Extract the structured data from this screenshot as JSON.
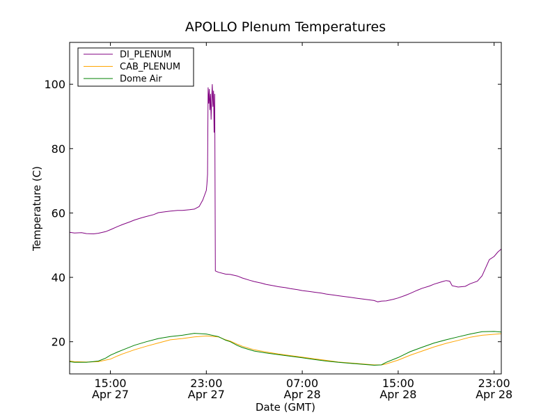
{
  "chart_data": {
    "type": "line",
    "title": "APOLLO Plenum Temperatures",
    "xlabel": "Date (GMT)",
    "ylabel": "Temperature (C)",
    "xlim_hours": [
      11.6,
      47.6
    ],
    "ylim": [
      10,
      113
    ],
    "grid": false,
    "legend_position": "top-left",
    "y_ticks": [
      20,
      40,
      60,
      80,
      100
    ],
    "x_ticks": [
      {
        "hour": 15,
        "time": "15:00",
        "date": "Apr 27"
      },
      {
        "hour": 23,
        "time": "23:00",
        "date": "Apr 27"
      },
      {
        "hour": 31,
        "time": "07:00",
        "date": "Apr 28"
      },
      {
        "hour": 39,
        "time": "15:00",
        "date": "Apr 28"
      },
      {
        "hour": 47,
        "time": "23:00",
        "date": "Apr 28"
      }
    ],
    "series": [
      {
        "name": "DI_PLENUM",
        "color": "#800080",
        "points": [
          [
            11.6,
            54.0
          ],
          [
            12.0,
            53.8
          ],
          [
            12.6,
            53.9
          ],
          [
            13.0,
            53.6
          ],
          [
            13.6,
            53.5
          ],
          [
            14.0,
            53.7
          ],
          [
            14.6,
            54.2
          ],
          [
            15.0,
            54.8
          ],
          [
            15.6,
            55.8
          ],
          [
            16.0,
            56.4
          ],
          [
            16.6,
            57.2
          ],
          [
            17.0,
            57.8
          ],
          [
            17.6,
            58.5
          ],
          [
            18.0,
            58.9
          ],
          [
            18.6,
            59.5
          ],
          [
            19.0,
            60.1
          ],
          [
            19.6,
            60.4
          ],
          [
            20.0,
            60.6
          ],
          [
            20.6,
            60.8
          ],
          [
            21.0,
            60.8
          ],
          [
            21.6,
            61.0
          ],
          [
            22.0,
            61.2
          ],
          [
            22.4,
            62.0
          ],
          [
            22.7,
            64.0
          ],
          [
            23.0,
            67.0
          ],
          [
            23.05,
            69.0
          ],
          [
            23.1,
            72.0
          ],
          [
            23.15,
            99.0
          ],
          [
            23.2,
            94.0
          ],
          [
            23.25,
            98.5
          ],
          [
            23.3,
            92.0
          ],
          [
            23.35,
            97.0
          ],
          [
            23.4,
            89.0
          ],
          [
            23.45,
            96.0
          ],
          [
            23.5,
            100.0
          ],
          [
            23.55,
            93.0
          ],
          [
            23.6,
            98.0
          ],
          [
            23.65,
            85.0
          ],
          [
            23.7,
            97.0
          ],
          [
            23.75,
            42.0
          ],
          [
            24.0,
            41.6
          ],
          [
            24.6,
            41.0
          ],
          [
            25.0,
            40.9
          ],
          [
            25.6,
            40.4
          ],
          [
            26.0,
            39.8
          ],
          [
            26.6,
            39.1
          ],
          [
            27.0,
            38.7
          ],
          [
            27.6,
            38.2
          ],
          [
            28.0,
            37.8
          ],
          [
            28.6,
            37.4
          ],
          [
            29.0,
            37.1
          ],
          [
            29.6,
            36.8
          ],
          [
            30.0,
            36.5
          ],
          [
            30.6,
            36.2
          ],
          [
            31.0,
            35.9
          ],
          [
            31.6,
            35.6
          ],
          [
            32.0,
            35.4
          ],
          [
            32.6,
            35.1
          ],
          [
            33.0,
            34.8
          ],
          [
            33.6,
            34.5
          ],
          [
            34.0,
            34.3
          ],
          [
            34.6,
            34.0
          ],
          [
            35.0,
            33.8
          ],
          [
            35.6,
            33.5
          ],
          [
            36.0,
            33.3
          ],
          [
            36.6,
            33.0
          ],
          [
            37.0,
            32.8
          ],
          [
            37.3,
            32.4
          ],
          [
            37.6,
            32.6
          ],
          [
            38.0,
            32.7
          ],
          [
            38.6,
            33.2
          ],
          [
            39.0,
            33.6
          ],
          [
            39.6,
            34.4
          ],
          [
            40.0,
            35.0
          ],
          [
            40.6,
            36.0
          ],
          [
            41.0,
            36.6
          ],
          [
            41.6,
            37.3
          ],
          [
            42.0,
            37.9
          ],
          [
            42.6,
            38.6
          ],
          [
            43.0,
            39.0
          ],
          [
            43.3,
            38.8
          ],
          [
            43.5,
            37.4
          ],
          [
            44.0,
            37.0
          ],
          [
            44.6,
            37.2
          ],
          [
            45.0,
            38.0
          ],
          [
            45.6,
            38.8
          ],
          [
            46.0,
            40.5
          ],
          [
            46.3,
            43.0
          ],
          [
            46.6,
            45.5
          ],
          [
            47.0,
            46.5
          ],
          [
            47.3,
            47.8
          ],
          [
            47.6,
            48.8
          ]
        ]
      },
      {
        "name": "CAB_PLENUM",
        "color": "#ffa500",
        "points": [
          [
            11.6,
            14.0
          ],
          [
            12.0,
            13.8
          ],
          [
            13.0,
            13.7
          ],
          [
            14.0,
            13.8
          ],
          [
            14.6,
            14.3
          ],
          [
            15.0,
            14.6
          ],
          [
            15.6,
            15.6
          ],
          [
            16.0,
            16.2
          ],
          [
            17.0,
            17.5
          ],
          [
            18.0,
            18.6
          ],
          [
            19.0,
            19.6
          ],
          [
            20.0,
            20.6
          ],
          [
            21.0,
            21.0
          ],
          [
            22.0,
            21.5
          ],
          [
            23.0,
            21.8
          ],
          [
            24.0,
            21.5
          ],
          [
            24.6,
            20.6
          ],
          [
            25.0,
            20.2
          ],
          [
            25.6,
            19.2
          ],
          [
            26.0,
            18.6
          ],
          [
            27.0,
            17.5
          ],
          [
            28.0,
            16.8
          ],
          [
            29.0,
            16.2
          ],
          [
            30.0,
            15.7
          ],
          [
            31.0,
            15.2
          ],
          [
            32.0,
            14.7
          ],
          [
            33.0,
            14.2
          ],
          [
            34.0,
            13.7
          ],
          [
            35.0,
            13.4
          ],
          [
            36.0,
            13.1
          ],
          [
            37.0,
            12.8
          ],
          [
            37.6,
            12.8
          ],
          [
            38.0,
            13.1
          ],
          [
            39.0,
            14.3
          ],
          [
            40.0,
            15.8
          ],
          [
            41.0,
            17.1
          ],
          [
            42.0,
            18.4
          ],
          [
            43.0,
            19.5
          ],
          [
            44.0,
            20.4
          ],
          [
            45.0,
            21.4
          ],
          [
            46.0,
            22.0
          ],
          [
            47.0,
            22.3
          ],
          [
            47.6,
            22.5
          ]
        ]
      },
      {
        "name": "Dome Air",
        "color": "#008000",
        "points": [
          [
            11.6,
            13.8
          ],
          [
            12.0,
            13.6
          ],
          [
            13.0,
            13.6
          ],
          [
            14.0,
            14.0
          ],
          [
            14.6,
            14.9
          ],
          [
            15.0,
            15.8
          ],
          [
            15.6,
            16.8
          ],
          [
            16.0,
            17.4
          ],
          [
            17.0,
            18.9
          ],
          [
            18.0,
            20.0
          ],
          [
            19.0,
            21.0
          ],
          [
            20.0,
            21.6
          ],
          [
            21.0,
            22.0
          ],
          [
            22.0,
            22.6
          ],
          [
            23.0,
            22.4
          ],
          [
            24.0,
            21.6
          ],
          [
            24.6,
            20.5
          ],
          [
            25.0,
            20.0
          ],
          [
            25.6,
            18.8
          ],
          [
            26.0,
            18.2
          ],
          [
            27.0,
            17.1
          ],
          [
            28.0,
            16.5
          ],
          [
            29.0,
            16.0
          ],
          [
            30.0,
            15.5
          ],
          [
            31.0,
            15.0
          ],
          [
            32.0,
            14.5
          ],
          [
            33.0,
            14.0
          ],
          [
            34.0,
            13.6
          ],
          [
            35.0,
            13.3
          ],
          [
            36.0,
            13.0
          ],
          [
            37.0,
            12.7
          ],
          [
            37.6,
            12.8
          ],
          [
            38.0,
            13.6
          ],
          [
            39.0,
            15.1
          ],
          [
            40.0,
            16.9
          ],
          [
            41.0,
            18.3
          ],
          [
            42.0,
            19.6
          ],
          [
            43.0,
            20.6
          ],
          [
            44.0,
            21.5
          ],
          [
            45.0,
            22.4
          ],
          [
            46.0,
            23.1
          ],
          [
            47.0,
            23.2
          ],
          [
            47.6,
            23.0
          ]
        ]
      }
    ]
  }
}
